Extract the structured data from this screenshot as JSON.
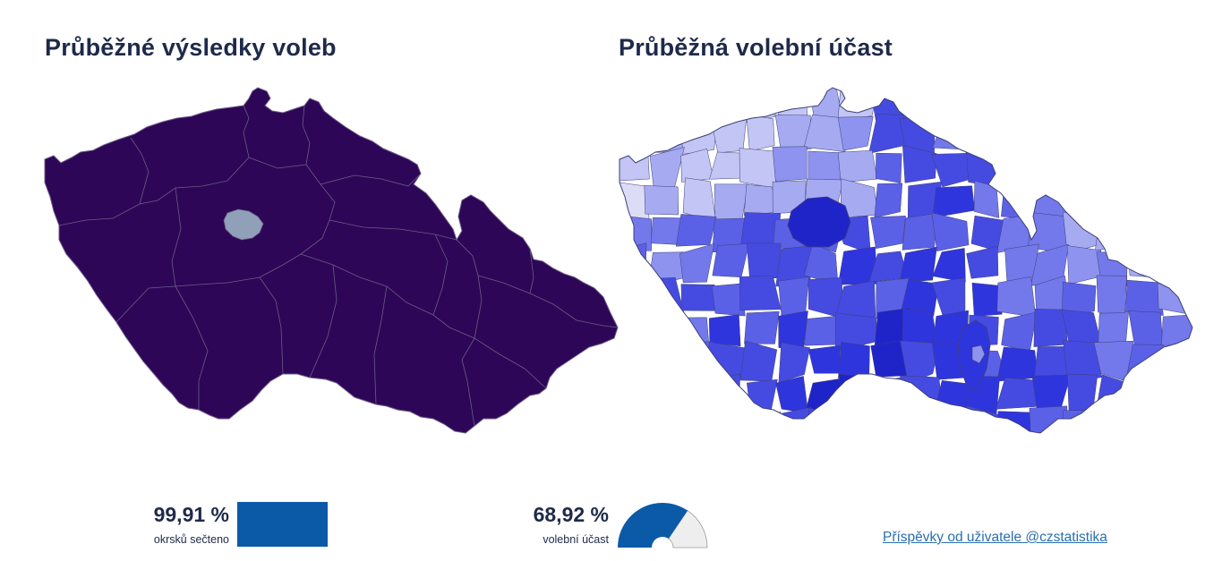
{
  "panels": {
    "results": {
      "title": "Průběžné výsledky voleb"
    },
    "turnout": {
      "title": "Průběžná volební účast"
    }
  },
  "colors": {
    "results_fill": "#2e0657",
    "results_prague": "#8fa0b8",
    "results_border": "#6a5c86",
    "turnout_border": "#3c3f78",
    "turnout_scale": [
      "#dcdcf6",
      "#c3c6f4",
      "#a6abf1",
      "#8d93ee",
      "#7379ea",
      "#5b61e6",
      "#454be1",
      "#2f35dc",
      "#1f24c9"
    ],
    "gauge_fill": "#0a5aa8",
    "gauge_empty": "#eeeeee",
    "link": "#2a6fb0"
  },
  "stats": {
    "counted": {
      "value": "99,91 %",
      "label": "okrsků sečteno",
      "fraction": 0.9991
    },
    "turnout": {
      "value": "68,92 %",
      "label": "volební účast",
      "fraction": 0.6892
    }
  },
  "footer": {
    "link_text": "Příspěvky od uživatele @czstatistika"
  }
}
